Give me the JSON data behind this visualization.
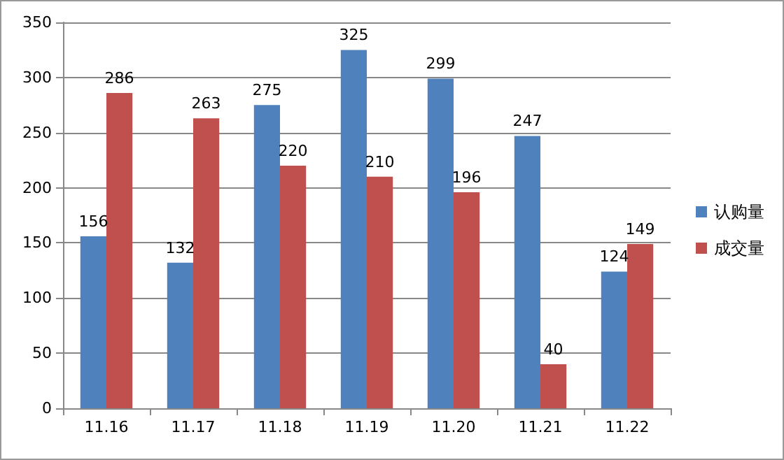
{
  "chart_data": {
    "type": "bar",
    "categories": [
      "11.16",
      "11.17",
      "11.18",
      "11.19",
      "11.20",
      "11.21",
      "11.22"
    ],
    "series": [
      {
        "name": "认购量",
        "color": "#4f81bd",
        "values": [
          156,
          132,
          275,
          325,
          299,
          247,
          124
        ]
      },
      {
        "name": "成交量",
        "color": "#c0504d",
        "values": [
          286,
          263,
          220,
          210,
          196,
          40,
          149
        ]
      }
    ],
    "ylim": [
      0,
      350
    ],
    "yticks": [
      0,
      50,
      100,
      150,
      200,
      250,
      300,
      350
    ],
    "grid": "y",
    "legend": "right",
    "data_labels": true
  }
}
